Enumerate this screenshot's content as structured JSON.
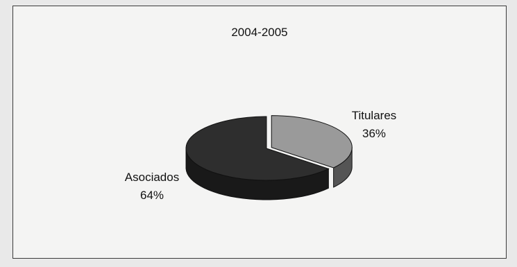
{
  "chart_data": {
    "type": "pie",
    "title": "2004-2005",
    "slices": [
      {
        "label": "Titulares",
        "percent_label": "36%",
        "value": 36,
        "color": "#9a9a9a"
      },
      {
        "label": "Asociados",
        "percent_label": "64%",
        "value": 64,
        "color": "#2e2e2e"
      }
    ],
    "style": "3d-exploded"
  }
}
